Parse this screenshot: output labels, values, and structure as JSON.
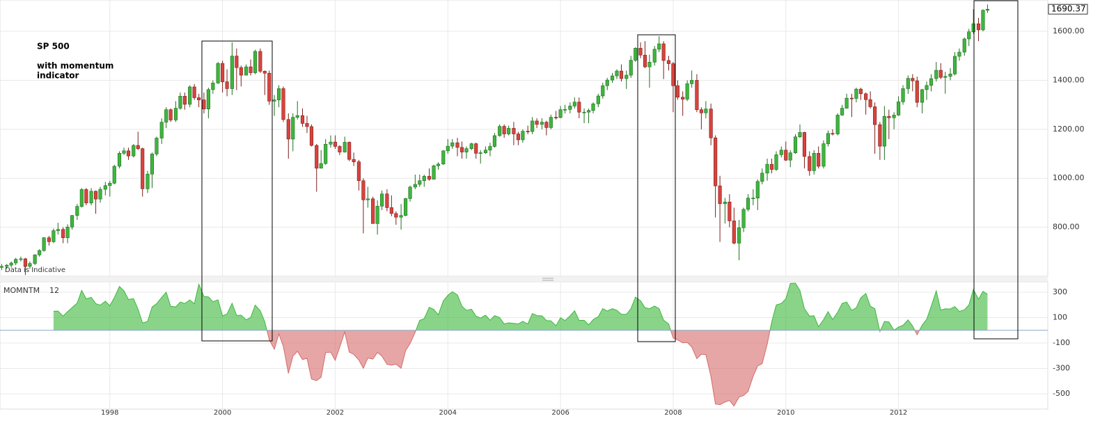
{
  "chart_data": {
    "type": "candlestick",
    "title": "SP 500",
    "subtitle": [
      "with momentum",
      "indicator"
    ],
    "note": "Data is Indicative",
    "up_color": "#3fb53f",
    "down_color": "#d9433d",
    "grid": true,
    "xlim": [
      1996.05,
      2014.65
    ],
    "xticks": [
      1998,
      2000,
      2002,
      2004,
      2006,
      2008,
      2010,
      2012
    ],
    "ylim": [
      600,
      1728
    ],
    "yticks": [
      {
        "value": 800,
        "label": "800.00"
      },
      {
        "value": 1000,
        "label": "1000.00"
      },
      {
        "value": 1200,
        "label": "1200.00"
      },
      {
        "value": 1400,
        "label": "1400.00"
      },
      {
        "value": 1600,
        "label": "1600.00"
      }
    ],
    "last_label": "1690.37",
    "x": [
      1996.0,
      1996.08,
      1996.17,
      1996.25,
      1996.33,
      1996.42,
      1996.5,
      1996.58,
      1996.67,
      1996.75,
      1996.83,
      1996.92,
      1997.0,
      1997.08,
      1997.17,
      1997.25,
      1997.33,
      1997.42,
      1997.5,
      1997.58,
      1997.67,
      1997.75,
      1997.83,
      1997.92,
      1998.0,
      1998.08,
      1998.17,
      1998.25,
      1998.33,
      1998.42,
      1998.5,
      1998.58,
      1998.67,
      1998.75,
      1998.83,
      1998.92,
      1999.0,
      1999.08,
      1999.17,
      1999.25,
      1999.33,
      1999.42,
      1999.5,
      1999.58,
      1999.67,
      1999.75,
      1999.83,
      1999.92,
      2000.0,
      2000.08,
      2000.17,
      2000.25,
      2000.33,
      2000.42,
      2000.5,
      2000.58,
      2000.67,
      2000.75,
      2000.83,
      2000.92,
      2001.0,
      2001.08,
      2001.17,
      2001.25,
      2001.33,
      2001.42,
      2001.5,
      2001.58,
      2001.67,
      2001.75,
      2001.83,
      2001.92,
      2002.0,
      2002.08,
      2002.17,
      2002.25,
      2002.33,
      2002.42,
      2002.5,
      2002.58,
      2002.67,
      2002.75,
      2002.83,
      2002.92,
      2003.0,
      2003.08,
      2003.17,
      2003.25,
      2003.33,
      2003.42,
      2003.5,
      2003.58,
      2003.67,
      2003.75,
      2003.83,
      2003.92,
      2004.0,
      2004.08,
      2004.17,
      2004.25,
      2004.33,
      2004.42,
      2004.5,
      2004.58,
      2004.67,
      2004.75,
      2004.83,
      2004.92,
      2005.0,
      2005.08,
      2005.17,
      2005.25,
      2005.33,
      2005.42,
      2005.5,
      2005.58,
      2005.67,
      2005.75,
      2005.83,
      2005.92,
      2006.0,
      2006.08,
      2006.17,
      2006.25,
      2006.33,
      2006.42,
      2006.5,
      2006.58,
      2006.67,
      2006.75,
      2006.83,
      2006.92,
      2007.0,
      2007.08,
      2007.17,
      2007.25,
      2007.33,
      2007.42,
      2007.5,
      2007.58,
      2007.67,
      2007.75,
      2007.83,
      2007.92,
      2008.0,
      2008.08,
      2008.17,
      2008.25,
      2008.33,
      2008.42,
      2008.5,
      2008.58,
      2008.67,
      2008.75,
      2008.83,
      2008.92,
      2009.0,
      2009.08,
      2009.17,
      2009.25,
      2009.33,
      2009.42,
      2009.5,
      2009.58,
      2009.67,
      2009.75,
      2009.83,
      2009.92,
      2010.0,
      2010.08,
      2010.17,
      2010.25,
      2010.33,
      2010.42,
      2010.5,
      2010.58,
      2010.67,
      2010.75,
      2010.83,
      2010.92,
      2011.0,
      2011.08,
      2011.17,
      2011.25,
      2011.33,
      2011.42,
      2011.5,
      2011.58,
      2011.67,
      2011.75,
      2011.83,
      2011.92,
      2012.0,
      2012.08,
      2012.17,
      2012.25,
      2012.33,
      2012.42,
      2012.5,
      2012.58,
      2012.67,
      2012.75,
      2012.83,
      2012.92,
      2013.0,
      2013.08,
      2013.17,
      2013.25,
      2013.33,
      2013.42,
      2013.5,
      2013.58
    ],
    "open": [
      616,
      636,
      640,
      645,
      654,
      669,
      671,
      640,
      652,
      687,
      705,
      757,
      741,
      786,
      791,
      757,
      801,
      848,
      885,
      954,
      899,
      947,
      915,
      955,
      970,
      980,
      1049,
      1102,
      1112,
      1091,
      1134,
      1121,
      957,
      1017,
      1099,
      1164,
      1229,
      1280,
      1238,
      1286,
      1335,
      1302,
      1373,
      1329,
      1320,
      1283,
      1362,
      1389,
      1469,
      1394,
      1366,
      1499,
      1452,
      1421,
      1455,
      1431,
      1518,
      1437,
      1429,
      1315,
      1320,
      1366,
      1240,
      1160,
      1249,
      1256,
      1224,
      1211,
      1134,
      1041,
      1060,
      1139,
      1148,
      1130,
      1107,
      1147,
      1077,
      1067,
      990,
      912,
      916,
      815,
      886,
      936,
      880,
      856,
      841,
      848,
      917,
      964,
      975,
      990,
      1008,
      996,
      1051,
      1058,
      1112,
      1131,
      1145,
      1126,
      1107,
      1121,
      1141,
      1102,
      1104,
      1115,
      1130,
      1174,
      1212,
      1181,
      1204,
      1181,
      1157,
      1192,
      1191,
      1234,
      1220,
      1229,
      1207,
      1249,
      1248,
      1280,
      1281,
      1295,
      1311,
      1270,
      1270,
      1277,
      1304,
      1336,
      1378,
      1401,
      1418,
      1438,
      1407,
      1421,
      1482,
      1531,
      1503,
      1455,
      1474,
      1527,
      1549,
      1481,
      1468,
      1378,
      1331,
      1323,
      1386,
      1400,
      1280,
      1267,
      1283,
      1165,
      969,
      896,
      903,
      826,
      735,
      798,
      873,
      919,
      919,
      987,
      1021,
      1057,
      1036,
      1096,
      1115,
      1074,
      1104,
      1169,
      1187,
      1089,
      1031,
      1102,
      1049,
      1141,
      1183,
      1181,
      1258,
      1286,
      1327,
      1326,
      1364,
      1345,
      1321,
      1292,
      1219,
      1131,
      1253,
      1247,
      1258,
      1312,
      1366,
      1408,
      1398,
      1310,
      1362,
      1379,
      1407,
      1441,
      1412,
      1416,
      1426,
      1498,
      1515,
      1569,
      1598,
      1631,
      1606,
      1686
    ],
    "high": [
      646,
      650,
      650,
      660,
      675,
      680,
      675,
      660,
      690,
      710,
      760,
      765,
      795,
      818,
      800,
      812,
      850,
      895,
      960,
      960,
      960,
      950,
      965,
      985,
      990,
      1055,
      1110,
      1125,
      1125,
      1140,
      1190,
      1125,
      1030,
      1105,
      1170,
      1245,
      1290,
      1285,
      1315,
      1350,
      1350,
      1380,
      1385,
      1345,
      1350,
      1370,
      1400,
      1475,
      1480,
      1445,
      1555,
      1530,
      1460,
      1465,
      1485,
      1525,
      1530,
      1440,
      1440,
      1340,
      1380,
      1375,
      1265,
      1265,
      1315,
      1285,
      1255,
      1220,
      1140,
      1115,
      1160,
      1175,
      1175,
      1135,
      1170,
      1150,
      1105,
      1075,
      1000,
      965,
      925,
      910,
      950,
      955,
      930,
      865,
      895,
      920,
      970,
      1015,
      1015,
      1015,
      1040,
      1055,
      1065,
      1115,
      1160,
      1160,
      1165,
      1150,
      1130,
      1145,
      1145,
      1115,
      1130,
      1145,
      1185,
      1220,
      1220,
      1215,
      1230,
      1190,
      1200,
      1215,
      1250,
      1245,
      1245,
      1235,
      1260,
      1275,
      1295,
      1300,
      1310,
      1330,
      1330,
      1285,
      1285,
      1310,
      1345,
      1390,
      1410,
      1430,
      1445,
      1465,
      1440,
      1500,
      1535,
      1555,
      1560,
      1505,
      1540,
      1580,
      1560,
      1500,
      1475,
      1400,
      1355,
      1400,
      1440,
      1425,
      1290,
      1315,
      1305,
      1175,
      1010,
      920,
      935,
      880,
      830,
      880,
      935,
      955,
      995,
      1040,
      1080,
      1080,
      1110,
      1130,
      1150,
      1115,
      1180,
      1220,
      1190,
      1110,
      1115,
      1130,
      1155,
      1195,
      1200,
      1265,
      1300,
      1345,
      1345,
      1370,
      1370,
      1350,
      1355,
      1310,
      1230,
      1295,
      1280,
      1270,
      1335,
      1380,
      1420,
      1425,
      1415,
      1365,
      1395,
      1425,
      1475,
      1470,
      1435,
      1450,
      1515,
      1530,
      1575,
      1610,
      1690,
      1655,
      1690,
      1710
    ],
    "low": [
      598,
      625,
      630,
      635,
      645,
      660,
      605,
      630,
      645,
      680,
      700,
      725,
      735,
      770,
      735,
      735,
      790,
      830,
      880,
      890,
      890,
      855,
      900,
      930,
      925,
      975,
      1040,
      1095,
      1075,
      1085,
      1115,
      925,
      940,
      960,
      1090,
      1140,
      1205,
      1230,
      1230,
      1280,
      1280,
      1290,
      1320,
      1290,
      1265,
      1245,
      1345,
      1385,
      1350,
      1335,
      1340,
      1360,
      1375,
      1420,
      1420,
      1425,
      1430,
      1340,
      1300,
      1255,
      1290,
      1230,
      1080,
      1110,
      1240,
      1210,
      1185,
      1130,
      945,
      1040,
      1055,
      1125,
      1120,
      1095,
      1105,
      1070,
      1050,
      950,
      775,
      880,
      815,
      770,
      870,
      865,
      845,
      810,
      790,
      845,
      905,
      955,
      965,
      965,
      990,
      1000,
      1035,
      1055,
      1100,
      1120,
      1090,
      1080,
      1080,
      1115,
      1080,
      1060,
      1100,
      1090,
      1125,
      1170,
      1165,
      1175,
      1135,
      1135,
      1145,
      1180,
      1180,
      1205,
      1200,
      1175,
      1200,
      1240,
      1245,
      1265,
      1265,
      1285,
      1245,
      1225,
      1225,
      1265,
      1290,
      1325,
      1360,
      1390,
      1405,
      1395,
      1365,
      1410,
      1475,
      1490,
      1450,
      1370,
      1460,
      1515,
      1405,
      1440,
      1270,
      1320,
      1255,
      1315,
      1370,
      1270,
      1200,
      1245,
      1135,
      840,
      740,
      815,
      800,
      730,
      665,
      780,
      865,
      890,
      870,
      975,
      990,
      1020,
      1030,
      1085,
      1070,
      1045,
      1100,
      1165,
      1040,
      1010,
      1015,
      1040,
      1040,
      1130,
      1175,
      1175,
      1255,
      1285,
      1250,
      1310,
      1320,
      1260,
      1285,
      1100,
      1075,
      1075,
      1160,
      1200,
      1255,
      1300,
      1345,
      1355,
      1290,
      1265,
      1320,
      1355,
      1395,
      1405,
      1345,
      1400,
      1420,
      1480,
      1500,
      1540,
      1590,
      1560,
      1600,
      1675
    ],
    "close": [
      636,
      640,
      645,
      654,
      669,
      671,
      640,
      652,
      687,
      705,
      757,
      741,
      786,
      791,
      757,
      801,
      848,
      885,
      954,
      899,
      947,
      915,
      955,
      970,
      980,
      1049,
      1102,
      1112,
      1091,
      1134,
      1121,
      957,
      1017,
      1099,
      1164,
      1229,
      1280,
      1238,
      1286,
      1335,
      1302,
      1373,
      1329,
      1320,
      1283,
      1362,
      1389,
      1469,
      1394,
      1366,
      1499,
      1452,
      1421,
      1455,
      1431,
      1518,
      1437,
      1429,
      1315,
      1320,
      1366,
      1240,
      1160,
      1249,
      1256,
      1224,
      1211,
      1134,
      1041,
      1060,
      1139,
      1148,
      1130,
      1107,
      1147,
      1077,
      1067,
      990,
      912,
      916,
      815,
      886,
      936,
      880,
      856,
      841,
      848,
      917,
      964,
      975,
      990,
      1008,
      996,
      1051,
      1058,
      1112,
      1131,
      1145,
      1126,
      1107,
      1121,
      1141,
      1102,
      1104,
      1115,
      1130,
      1174,
      1212,
      1181,
      1204,
      1181,
      1157,
      1192,
      1191,
      1234,
      1220,
      1229,
      1207,
      1249,
      1248,
      1280,
      1281,
      1295,
      1311,
      1270,
      1270,
      1277,
      1304,
      1336,
      1378,
      1401,
      1418,
      1438,
      1407,
      1421,
      1482,
      1531,
      1503,
      1455,
      1474,
      1527,
      1549,
      1481,
      1468,
      1378,
      1331,
      1323,
      1386,
      1400,
      1280,
      1267,
      1283,
      1165,
      969,
      896,
      903,
      826,
      735,
      798,
      873,
      919,
      919,
      987,
      1021,
      1057,
      1036,
      1096,
      1115,
      1074,
      1104,
      1169,
      1187,
      1089,
      1031,
      1102,
      1049,
      1141,
      1183,
      1181,
      1258,
      1286,
      1327,
      1326,
      1364,
      1345,
      1321,
      1292,
      1219,
      1131,
      1253,
      1247,
      1258,
      1312,
      1366,
      1408,
      1398,
      1310,
      1362,
      1379,
      1407,
      1441,
      1412,
      1416,
      1426,
      1498,
      1515,
      1569,
      1598,
      1631,
      1606,
      1686,
      1690.37
    ],
    "indicator": {
      "type": "area",
      "name": "MOMNTM",
      "period": 12,
      "positive_color": "#3cb83c",
      "negative_color": "#d66a6a",
      "ylim": [
        -620,
        382
      ],
      "yticks": [
        300,
        100,
        -100,
        -300,
        -500
      ],
      "values": [
        null,
        null,
        null,
        null,
        null,
        null,
        null,
        null,
        null,
        null,
        null,
        null,
        150,
        151,
        112,
        147,
        179,
        214,
        314,
        247,
        260,
        210,
        198,
        229,
        194,
        258,
        345,
        311,
        243,
        249,
        167,
        58,
        70,
        184,
        209,
        259,
        300,
        189,
        184,
        223,
        211,
        239,
        208,
        363,
        266,
        263,
        225,
        240,
        114,
        128,
        213,
        117,
        119,
        82,
        102,
        198,
        154,
        67,
        -74,
        -149,
        -28,
        -126,
        -339,
        -203,
        -165,
        -231,
        -220,
        -384,
        -396,
        -369,
        -176,
        -172,
        -236,
        -133,
        -13,
        -172,
        -189,
        -234,
        -299,
        -218,
        -226,
        -174,
        -203,
        -268,
        -274,
        -266,
        -299,
        -160,
        -103,
        -15,
        78,
        92,
        181,
        165,
        122,
        232,
        275,
        304,
        278,
        190,
        157,
        166,
        112,
        96,
        119,
        79,
        116,
        100,
        50,
        59,
        55,
        50,
        71,
        50,
        132,
        116,
        114,
        77,
        75,
        36,
        99,
        77,
        114,
        154,
        78,
        79,
        43,
        84,
        107,
        171,
        152,
        170,
        158,
        126,
        126,
        171,
        261,
        233,
        178,
        170,
        191,
        171,
        80,
        50,
        -60,
        -76,
        -98,
        -96,
        -131,
        -223,
        -188,
        -191,
        -362,
        -580,
        -585,
        -565,
        -552,
        -596,
        -525,
        -513,
        -481,
        -361,
        -280,
        -262,
        -108,
        67,
        200,
        212,
        248,
        369,
        371,
        314,
        170,
        112,
        115,
        28,
        84,
        147,
        85,
        143,
        212,
        223,
        157,
        177,
        256,
        290,
        190,
        170,
        -10,
        70,
        66,
        0,
        26,
        39,
        82,
        34,
        -35,
        41,
        87,
        188,
        310,
        159,
        169,
        168,
        186,
        149,
        161,
        200,
        321,
        244,
        307,
        283
      ]
    }
  }
}
